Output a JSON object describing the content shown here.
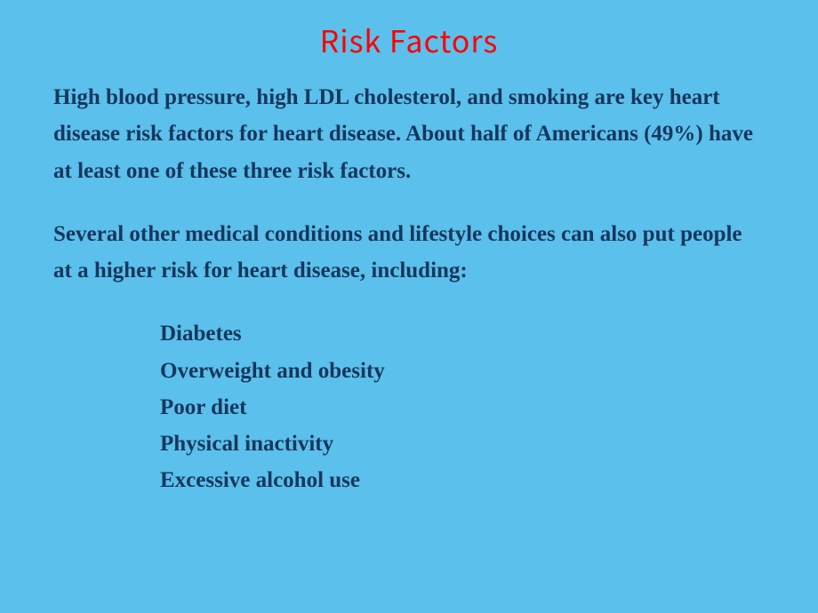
{
  "slide": {
    "title": "Risk Factors",
    "title_color": "#ff0000",
    "title_fontsize": 34,
    "background_color": "#5bc0eb",
    "text_color": "#17375e",
    "body_fontsize": 25,
    "paragraph1": "High blood pressure, high LDL cholesterol, and smoking are key heart disease risk factors for heart disease. About half of Americans (49%) have at least one of these three risk factors.",
    "paragraph2": "Several other medical conditions and lifestyle choices can also put people at a higher risk for heart disease, including:",
    "list_items": [
      "Diabetes",
      "Overweight and obesity",
      "Poor diet",
      "Physical inactivity",
      "Excessive alcohol use"
    ]
  }
}
